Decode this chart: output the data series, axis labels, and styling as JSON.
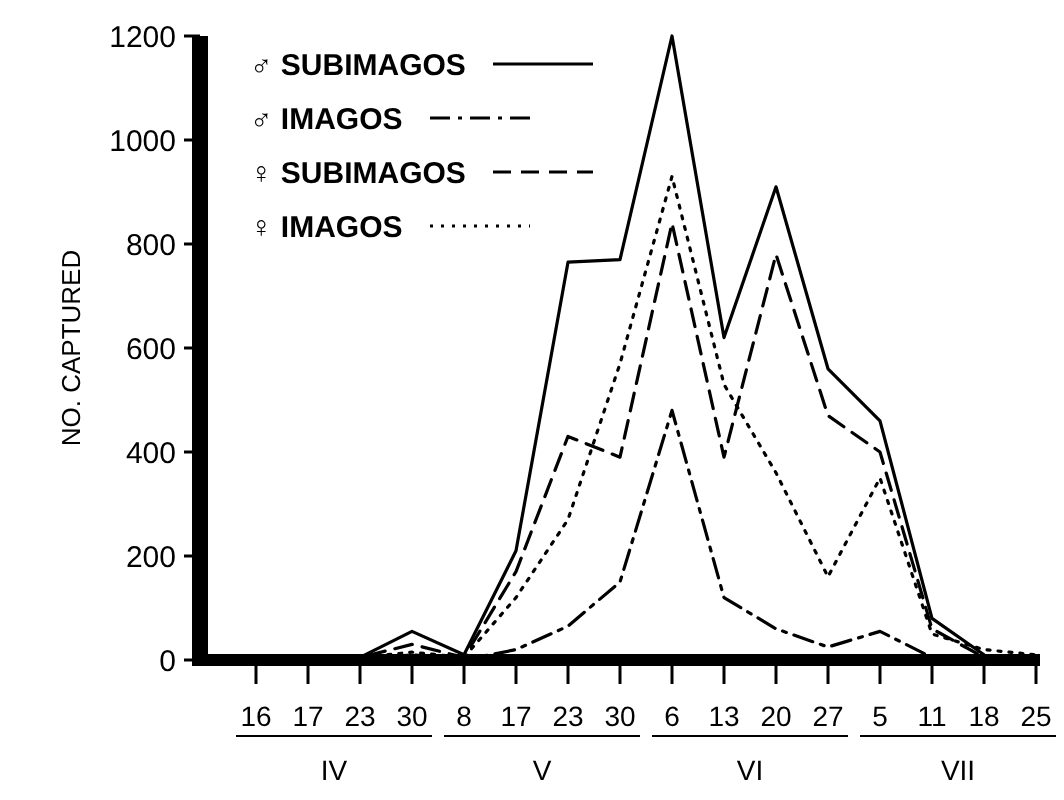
{
  "chart_data": {
    "type": "line",
    "ylabel": "NO. CAPTURED",
    "categories": [
      "16",
      "17",
      "23",
      "30",
      "8",
      "17",
      "23",
      "30",
      "6",
      "13",
      "20",
      "27",
      "5",
      "11",
      "18",
      "25"
    ],
    "series": [
      {
        "name": "♂ SUBIMAGOS",
        "color": "#000000",
        "line_style": "solid",
        "values": [
          0,
          0,
          5,
          55,
          10,
          210,
          765,
          770,
          1200,
          620,
          910,
          560,
          460,
          80,
          10,
          null
        ]
      },
      {
        "name": "♂ IMAGOS",
        "color": "#000000",
        "line_style": "dashdot",
        "values": [
          0,
          0,
          0,
          10,
          0,
          20,
          65,
          150,
          480,
          120,
          60,
          25,
          55,
          5,
          null,
          null
        ]
      },
      {
        "name": "♀ SUBIMAGOS",
        "color": "#000000",
        "line_style": "dashed",
        "values": [
          0,
          0,
          5,
          30,
          5,
          170,
          430,
          390,
          840,
          390,
          780,
          470,
          400,
          60,
          5,
          null
        ]
      },
      {
        "name": "♀ IMAGOS",
        "color": "#000000",
        "line_style": "dotted",
        "values": [
          0,
          0,
          5,
          15,
          5,
          120,
          270,
          570,
          930,
          530,
          360,
          160,
          350,
          50,
          20,
          10
        ]
      }
    ],
    "annotations": [
      "IV",
      "V",
      "VI",
      "VII"
    ],
    "ylim": [
      0,
      1200
    ],
    "yticks": [
      0,
      200,
      400,
      600,
      800,
      1000,
      1200
    ],
    "grid": false,
    "legend": "top left",
    "marker": "none"
  }
}
